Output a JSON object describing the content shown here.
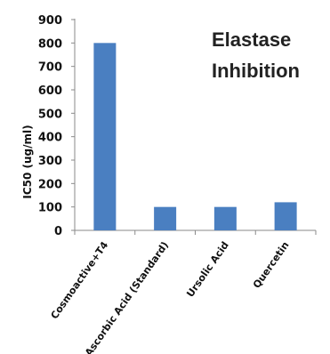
{
  "chart_data": {
    "type": "bar",
    "title_lines": [
      "Elastase",
      "Inhibition"
    ],
    "xlabel": "",
    "ylabel": "IC50 (ug/ml)",
    "ylim": [
      0,
      900
    ],
    "yticks": [
      0,
      100,
      200,
      300,
      400,
      500,
      600,
      700,
      800,
      900
    ],
    "categories": [
      "Cosmoactive+T4",
      "Ascorbic Acid (Standard)",
      "Ursolic Acid",
      "Quercetin"
    ],
    "values": [
      800,
      100,
      100,
      120
    ],
    "bar_color": "#4a7fc1",
    "grid": false,
    "legend": "none"
  }
}
